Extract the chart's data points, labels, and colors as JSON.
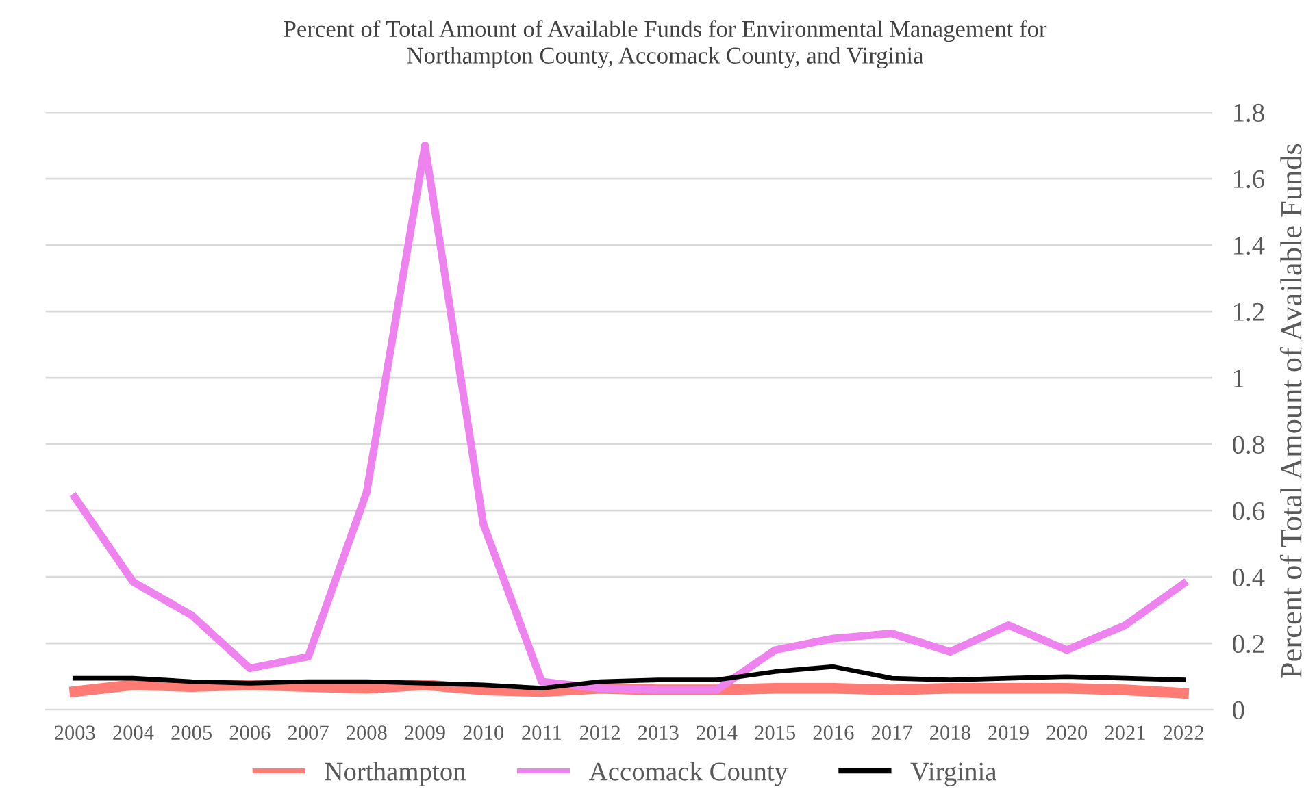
{
  "chart_data": {
    "type": "line",
    "title": "Percent of Total Amount of Available Funds for Environmental Management for\nNorthampton County, Accomack County, and Virginia",
    "ylabel": "Percent of Total Amount of Available Funds",
    "categories": [
      "2003",
      "2004",
      "2005",
      "2006",
      "2007",
      "2008",
      "2009",
      "2010",
      "2011",
      "2012",
      "2013",
      "2014",
      "2015",
      "2016",
      "2017",
      "2018",
      "2019",
      "2020",
      "2021",
      "2022"
    ],
    "series": [
      {
        "name": "Northampton",
        "color": "#ff7b74",
        "values": [
          0.055,
          0.075,
          0.07,
          0.075,
          0.07,
          0.065,
          0.075,
          0.06,
          0.055,
          0.065,
          0.06,
          0.06,
          0.065,
          0.065,
          0.06,
          0.065,
          0.065,
          0.065,
          0.06,
          0.05
        ]
      },
      {
        "name": "Accomack County",
        "color": "#ee82ee",
        "values": [
          0.64,
          0.385,
          0.285,
          0.125,
          0.16,
          0.655,
          1.7,
          0.56,
          0.085,
          0.065,
          0.06,
          0.06,
          0.18,
          0.215,
          0.23,
          0.175,
          0.255,
          0.18,
          0.255,
          0.38
        ]
      },
      {
        "name": "Virginia",
        "color": "#000000",
        "values": [
          0.095,
          0.095,
          0.085,
          0.08,
          0.085,
          0.085,
          0.08,
          0.075,
          0.065,
          0.085,
          0.09,
          0.09,
          0.115,
          0.13,
          0.095,
          0.09,
          0.095,
          0.1,
          0.095,
          0.09
        ]
      }
    ],
    "ylim": [
      0,
      1.8
    ],
    "yticks": [
      0,
      {
        "value": 0.2,
        "label": "0.2"
      },
      {
        "value": 0.4,
        "label": "0.4"
      },
      {
        "value": 0.6,
        "label": "0.6"
      },
      {
        "value": 0.8,
        "label": "0.8"
      },
      1,
      {
        "value": 1.2,
        "label": "1.2"
      },
      {
        "value": 1.4,
        "label": "1.4"
      },
      {
        "value": 1.6,
        "label": "1.6"
      },
      {
        "value": 1.8,
        "label": "1.8"
      }
    ],
    "grid": "y",
    "legend": "bottom",
    "marker": "none",
    "line_style": "solid"
  }
}
